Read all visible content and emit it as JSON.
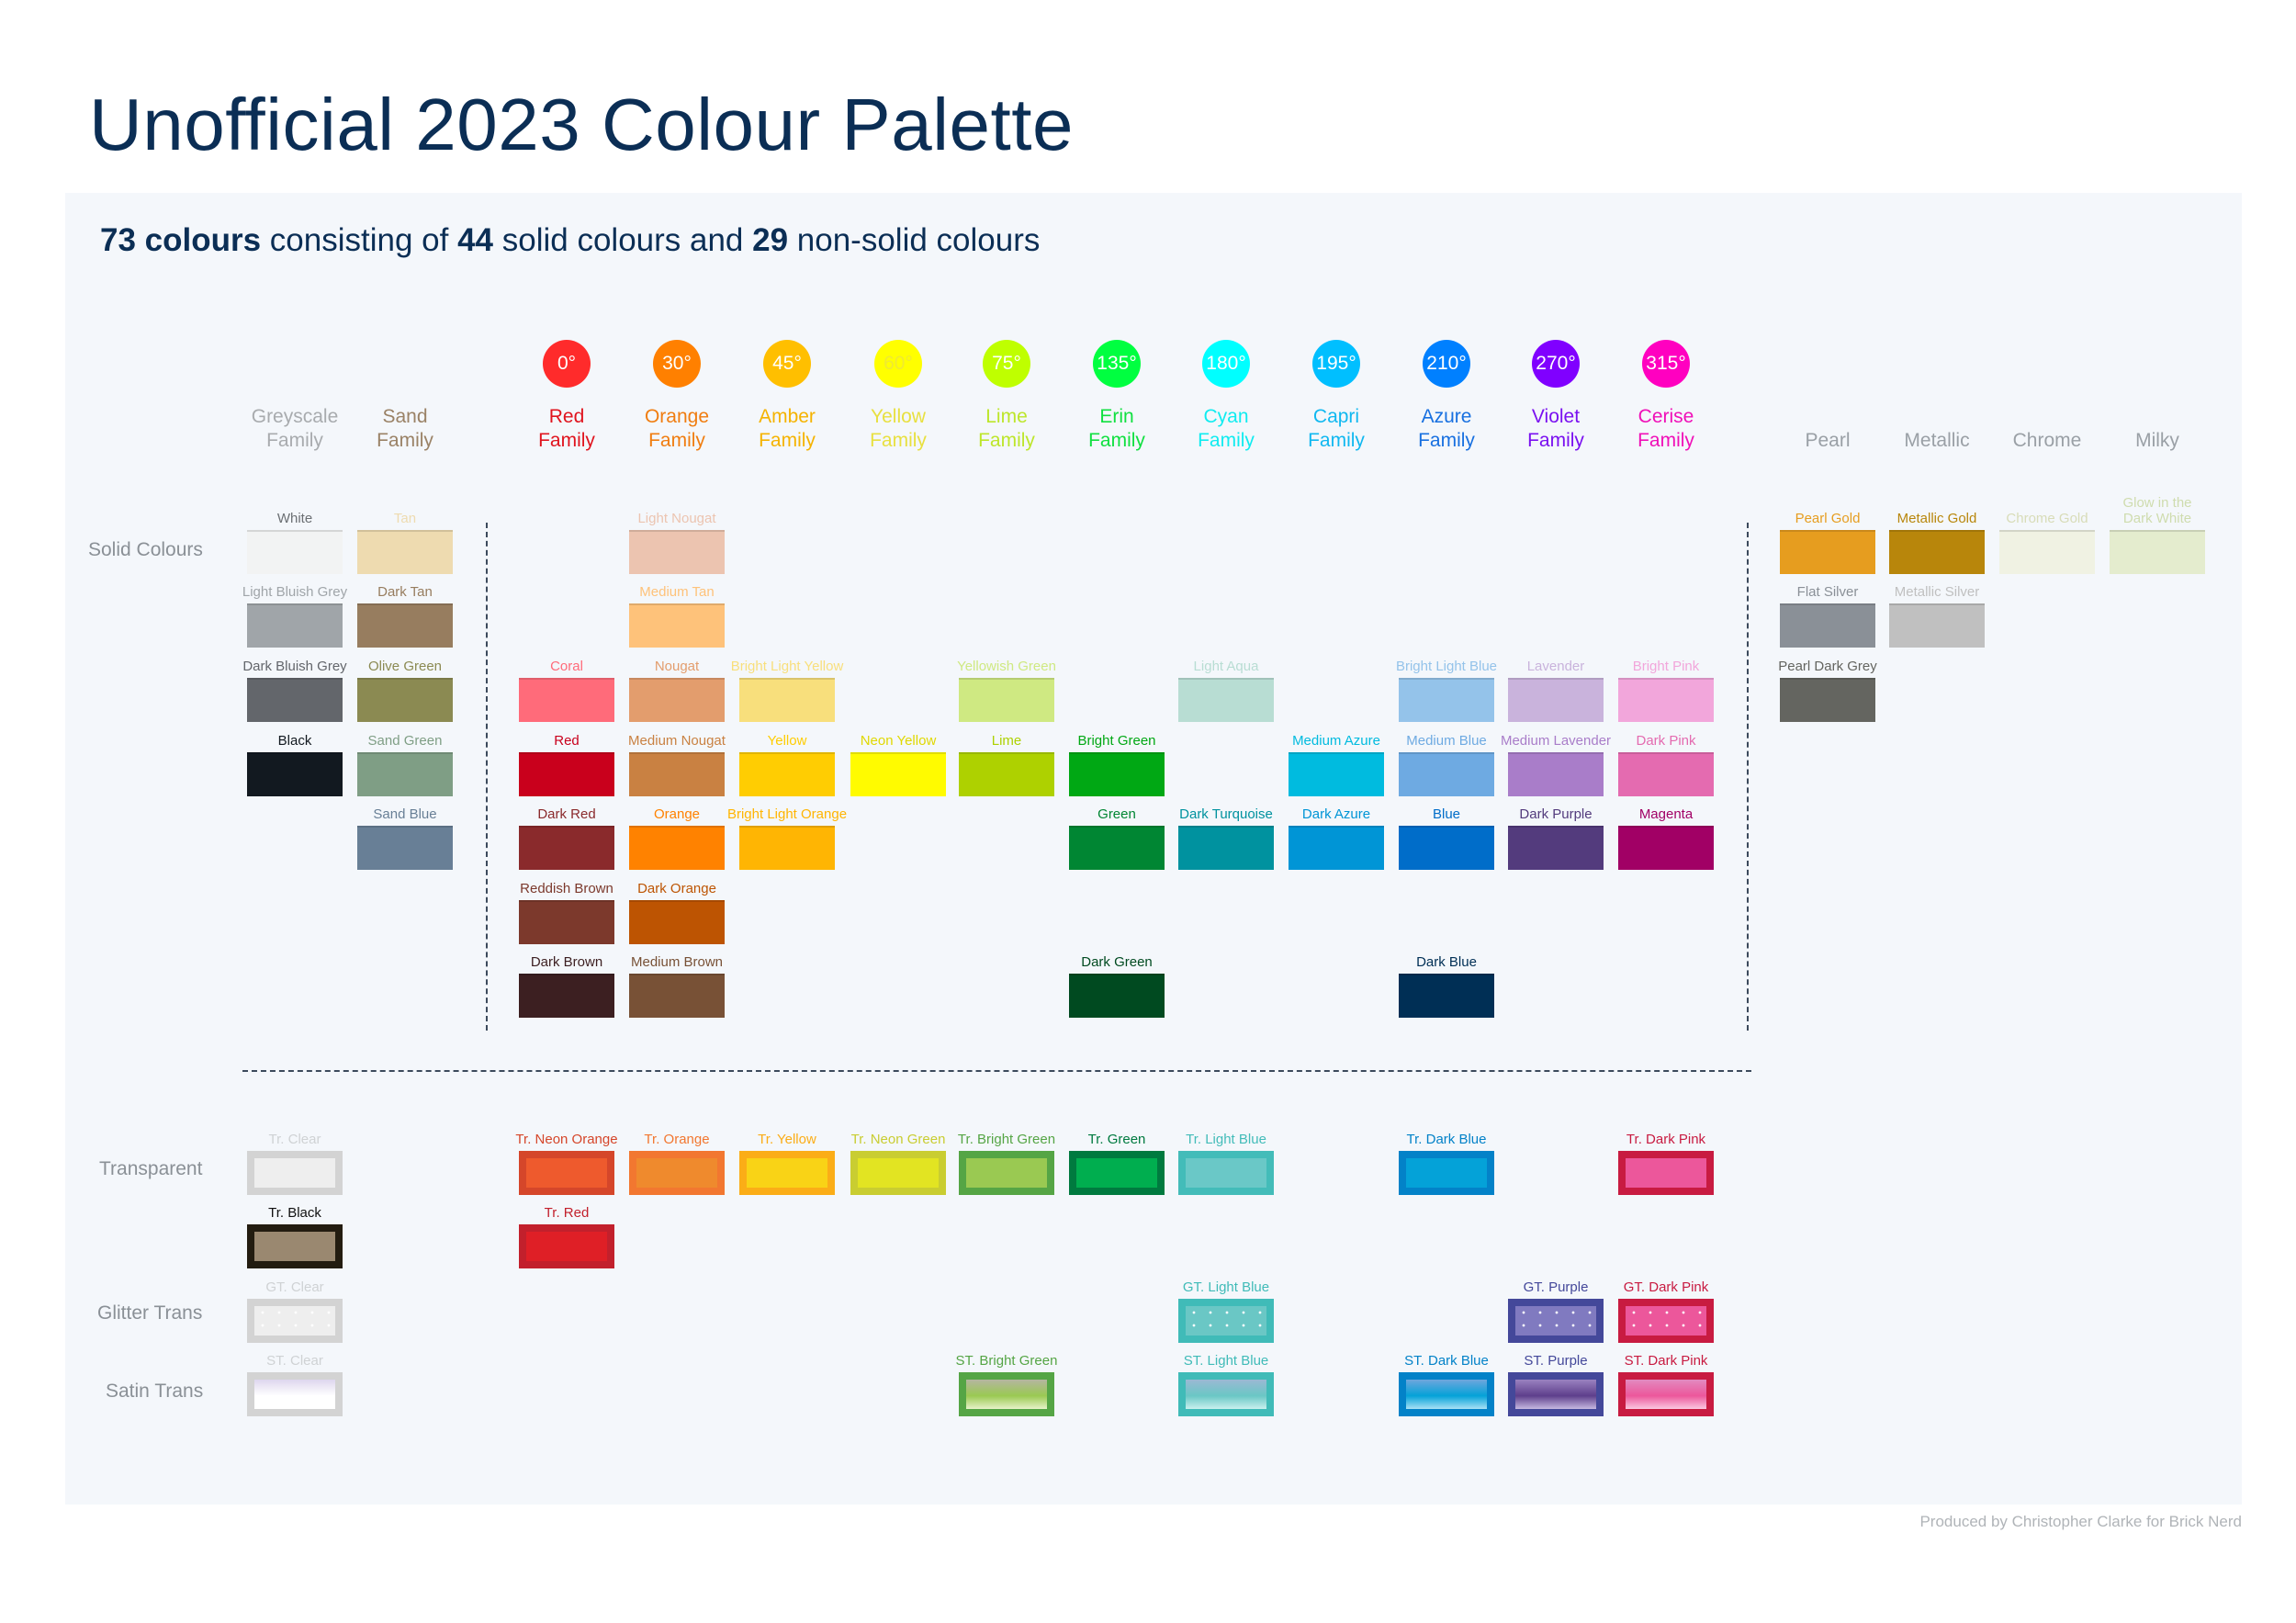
{
  "title": "Unofficial 2023 Colour Palette",
  "subtitle": {
    "total": "73 colours",
    "mid1": " consisting of ",
    "solid": "44",
    "mid2": " solid colours and ",
    "nonsolid": "29",
    "end": " non-solid colours"
  },
  "families": [
    {
      "name": [
        "Greyscale",
        "Family"
      ],
      "text_color": "#a8abae"
    },
    {
      "name": [
        "Sand",
        "Family"
      ],
      "text_color": "#9a8266"
    },
    {
      "degree": "0°",
      "name": [
        "Red",
        "Family"
      ],
      "color": "#ff2b2b",
      "text_color": "#e0141e"
    },
    {
      "degree": "30°",
      "name": [
        "Orange",
        "Family"
      ],
      "color": "#ff8000",
      "text_color": "#f07d10"
    },
    {
      "degree": "45°",
      "name": [
        "Amber",
        "Family"
      ],
      "color": "#ffbf00",
      "text_color": "#f5b300"
    },
    {
      "degree": "60°",
      "name": [
        "Yellow",
        "Family"
      ],
      "color": "#ffff00",
      "text_color": "#e8e040"
    },
    {
      "degree": "75°",
      "name": [
        "Lime",
        "Family"
      ],
      "color": "#bfff00",
      "text_color": "#bde62a"
    },
    {
      "degree": "135°",
      "name": [
        "Erin",
        "Family"
      ],
      "color": "#00ff40",
      "text_color": "#10e040"
    },
    {
      "degree": "180°",
      "name": [
        "Cyan",
        "Family"
      ],
      "color": "#00ffff",
      "text_color": "#10ecf0"
    },
    {
      "degree": "195°",
      "name": [
        "Capri",
        "Family"
      ],
      "color": "#00bfff",
      "text_color": "#10b8f0"
    },
    {
      "degree": "210°",
      "name": [
        "Azure",
        "Family"
      ],
      "color": "#0080ff",
      "text_color": "#1870e0"
    },
    {
      "degree": "270°",
      "name": [
        "Violet",
        "Family"
      ],
      "color": "#8000ff",
      "text_color": "#7a10f0"
    },
    {
      "degree": "315°",
      "name": [
        "Cerise",
        "Family"
      ],
      "color": "#ff00c0",
      "text_color": "#f010b8"
    },
    {
      "name": [
        "",
        "Pearl"
      ],
      "text_color": "#9aa0a6"
    },
    {
      "name": [
        "",
        "Metallic"
      ],
      "text_color": "#9aa0a6"
    },
    {
      "name": [
        "",
        "Chrome"
      ],
      "text_color": "#9aa0a6"
    },
    {
      "name": [
        "",
        "Milky"
      ],
      "text_color": "#9aa0a6"
    }
  ],
  "row_labels": {
    "solid": "Solid Colours",
    "transparent": "Transparent",
    "glitter": "Glitter Trans",
    "satin": "Satin Trans"
  },
  "solid_colours": [
    {
      "name": "White",
      "family": 0,
      "row": 0,
      "color": "#f2f3f3",
      "label_color": "#6b6f73"
    },
    {
      "name": "Light Bluish Grey",
      "family": 0,
      "row": 1,
      "color": "#a0a5a9"
    },
    {
      "name": "Dark Bluish Grey",
      "family": 0,
      "row": 2,
      "color": "#63666b"
    },
    {
      "name": "Black",
      "family": 0,
      "row": 3,
      "color": "#121920"
    },
    {
      "name": "Tan",
      "family": 1,
      "row": 0,
      "color": "#eedbb0"
    },
    {
      "name": "Dark Tan",
      "family": 1,
      "row": 1,
      "color": "#977d5f"
    },
    {
      "name": "Olive Green",
      "family": 1,
      "row": 2,
      "color": "#8b8a52"
    },
    {
      "name": "Sand Green",
      "family": 1,
      "row": 3,
      "color": "#7f9e85"
    },
    {
      "name": "Sand Blue",
      "family": 1,
      "row": 4,
      "color": "#687f96"
    },
    {
      "name": "Coral",
      "family": 2,
      "row": 2,
      "color": "#ff6b7a"
    },
    {
      "name": "Red",
      "family": 2,
      "row": 3,
      "color": "#c9001c"
    },
    {
      "name": "Dark Red",
      "family": 2,
      "row": 4,
      "color": "#8a2a2c"
    },
    {
      "name": "Reddish Brown",
      "family": 2,
      "row": 5,
      "color": "#7c392c"
    },
    {
      "name": "Dark Brown",
      "family": 2,
      "row": 6,
      "color": "#3c1f21"
    },
    {
      "name": "Light Nougat",
      "family": 3,
      "row": 0,
      "color": "#ecc4b0"
    },
    {
      "name": "Medium Tan",
      "family": 3,
      "row": 1,
      "color": "#fec27a"
    },
    {
      "name": "Nougat",
      "family": 3,
      "row": 2,
      "color": "#e39d6d"
    },
    {
      "name": "Medium Nougat",
      "family": 3,
      "row": 3,
      "color": "#c98142"
    },
    {
      "name": "Orange",
      "family": 3,
      "row": 4,
      "color": "#ff8200"
    },
    {
      "name": "Dark Orange",
      "family": 3,
      "row": 5,
      "color": "#bd5402"
    },
    {
      "name": "Medium Brown",
      "family": 3,
      "row": 6,
      "color": "#785136"
    },
    {
      "name": "Bright Light Yellow",
      "family": 4,
      "row": 2,
      "color": "#f8df7c"
    },
    {
      "name": "Yellow",
      "family": 4,
      "row": 3,
      "color": "#ffcd02"
    },
    {
      "name": "Bright Light Orange",
      "family": 4,
      "row": 4,
      "color": "#ffb503"
    },
    {
      "name": "Neon Yellow",
      "family": 5,
      "row": 3,
      "color": "#fffb00",
      "label_color": "#e0d800"
    },
    {
      "name": "Yellowish Green",
      "family": 6,
      "row": 2,
      "color": "#cfe982"
    },
    {
      "name": "Lime",
      "family": 6,
      "row": 3,
      "color": "#aed100"
    },
    {
      "name": "Bright Green",
      "family": 7,
      "row": 3,
      "color": "#00a814"
    },
    {
      "name": "Green",
      "family": 7,
      "row": 4,
      "color": "#008633"
    },
    {
      "name": "Dark Green",
      "family": 7,
      "row": 6,
      "color": "#004a20"
    },
    {
      "name": "Light Aqua",
      "family": 8,
      "row": 2,
      "color": "#b8ddd3"
    },
    {
      "name": "Dark Turquoise",
      "family": 8,
      "row": 4,
      "color": "#00929f"
    },
    {
      "name": "Medium Azure",
      "family": 9,
      "row": 3,
      "color": "#00bbdf"
    },
    {
      "name": "Dark Azure",
      "family": 9,
      "row": 4,
      "color": "#0095d6"
    },
    {
      "name": "Bright Light Blue",
      "family": 10,
      "row": 2,
      "color": "#94c3ea"
    },
    {
      "name": "Medium Blue",
      "family": 10,
      "row": 3,
      "color": "#6eaae2"
    },
    {
      "name": "Blue",
      "family": 10,
      "row": 4,
      "color": "#006dc9"
    },
    {
      "name": "Dark Blue",
      "family": 10,
      "row": 6,
      "color": "#002f55"
    },
    {
      "name": "Lavender",
      "family": 11,
      "row": 2,
      "color": "#c9b3dc"
    },
    {
      "name": "Medium Lavender",
      "family": 11,
      "row": 3,
      "color": "#a97dc9"
    },
    {
      "name": "Dark Purple",
      "family": 11,
      "row": 4,
      "color": "#533b7d"
    },
    {
      "name": "Bright Pink",
      "family": 12,
      "row": 2,
      "color": "#f2a6db"
    },
    {
      "name": "Dark Pink",
      "family": 12,
      "row": 3,
      "color": "#e46bb0"
    },
    {
      "name": "Magenta",
      "family": 12,
      "row": 4,
      "color": "#a10065"
    }
  ],
  "special_colours": [
    {
      "name": "Pearl Gold",
      "family": 13,
      "row": 0,
      "color": "#e69d1f"
    },
    {
      "name": "Flat Silver",
      "family": 13,
      "row": 1,
      "color": "#8a9097"
    },
    {
      "name": "Pearl Dark Grey",
      "family": 13,
      "row": 2,
      "color": "#646560"
    },
    {
      "name": "Metallic Gold",
      "family": 14,
      "row": 0,
      "color": "#b8860b"
    },
    {
      "name": "Metallic Silver",
      "family": 14,
      "row": 1,
      "color": "#c0c0c0"
    },
    {
      "name": "Chrome Gold",
      "family": 15,
      "row": 0,
      "color": "#f0f2e3",
      "label_color": "#d8dcb8"
    },
    {
      "name": "Glow in the Dark White",
      "family": 16,
      "row": 0,
      "color": "#e4ecce",
      "label_color": "#cfdcae"
    }
  ],
  "trans_colours": [
    {
      "name": "Tr. Clear",
      "family": 0,
      "row": 0,
      "type": "trans",
      "border": "#d3d3d3",
      "color": "#eeeeee",
      "label_color": "#cfd2d4"
    },
    {
      "name": "Tr. Black",
      "family": 0,
      "row": 1,
      "type": "trans",
      "border": "#231c10",
      "color": "#9a8870",
      "label_color": "#111111"
    },
    {
      "name": "Tr. Neon Orange",
      "family": 2,
      "row": 0,
      "type": "trans",
      "border": "#d5462a",
      "color": "#ee5a2d"
    },
    {
      "name": "Tr. Red",
      "family": 2,
      "row": 1,
      "type": "trans",
      "border": "#c2202c",
      "color": "#df1f26"
    },
    {
      "name": "Tr. Orange",
      "family": 3,
      "row": 0,
      "type": "trans",
      "border": "#f27730",
      "color": "#ef8a2d"
    },
    {
      "name": "Tr. Yellow",
      "family": 4,
      "row": 0,
      "type": "trans",
      "border": "#fbad17",
      "color": "#f9d316"
    },
    {
      "name": "Tr. Neon Green",
      "family": 5,
      "row": 0,
      "type": "trans",
      "border": "#c9cd31",
      "color": "#e2e422"
    },
    {
      "name": "Tr. Bright Green",
      "family": 6,
      "row": 0,
      "type": "trans",
      "border": "#55a545",
      "color": "#9ac952"
    },
    {
      "name": "Tr. Green",
      "family": 7,
      "row": 0,
      "type": "trans",
      "border": "#007a3f",
      "color": "#00ae4f"
    },
    {
      "name": "Tr. Light Blue",
      "family": 8,
      "row": 0,
      "type": "trans",
      "border": "#43bcb9",
      "color": "#6ac8c7"
    },
    {
      "name": "Tr. Dark Blue",
      "family": 10,
      "row": 0,
      "type": "trans",
      "border": "#0382c8",
      "color": "#04a2d8"
    },
    {
      "name": "Tr. Dark Pink",
      "family": 12,
      "row": 0,
      "type": "trans",
      "border": "#c81b41",
      "color": "#ec579b"
    },
    {
      "name": "GT. Clear",
      "family": 0,
      "row": 2,
      "type": "glitter",
      "border": "#d3d3d3",
      "color": "#eeeeee",
      "label_color": "#cfd2d4"
    },
    {
      "name": "GT. Light Blue",
      "family": 8,
      "row": 2,
      "type": "glitter",
      "border": "#40bbb8",
      "color": "#6ac7c5"
    },
    {
      "name": "GT. Purple",
      "family": 11,
      "row": 2,
      "type": "glitter",
      "border": "#44489a",
      "color": "#807ac0"
    },
    {
      "name": "GT. Dark Pink",
      "family": 12,
      "row": 2,
      "type": "glitter",
      "border": "#c81b41",
      "color": "#ec579b"
    },
    {
      "name": "ST. Clear",
      "family": 0,
      "row": 3,
      "type": "satin",
      "border": "#d3d3d3",
      "gradient": [
        "#ddd6ee",
        "#ffffff",
        "#ffffff"
      ],
      "label_color": "#cfd2d4"
    },
    {
      "name": "ST. Bright Green",
      "family": 6,
      "row": 3,
      "type": "satin",
      "border": "#55a545",
      "gradient": [
        "#b5b5a0",
        "#9ac952",
        "#e6f2c8"
      ]
    },
    {
      "name": "ST. Light Blue",
      "family": 8,
      "row": 3,
      "type": "satin",
      "border": "#40bbb8",
      "gradient": [
        "#9bb8d4",
        "#6ac7c5",
        "#c8f0ee"
      ]
    },
    {
      "name": "ST. Dark Blue",
      "family": 10,
      "row": 3,
      "type": "satin",
      "border": "#0382c8",
      "gradient": [
        "#6ea6dd",
        "#04a2d8",
        "#a8e0f5"
      ]
    },
    {
      "name": "ST. Purple",
      "family": 11,
      "row": 3,
      "type": "satin",
      "border": "#44489a",
      "gradient": [
        "#9a82c0",
        "#5e3f8c",
        "#c6b8e0"
      ]
    },
    {
      "name": "ST. Dark Pink",
      "family": 12,
      "row": 3,
      "type": "satin",
      "border": "#c81b41",
      "gradient": [
        "#e28ac0",
        "#ec579b",
        "#fac8e0"
      ]
    }
  ],
  "footer": "Produced by Christopher Clarke for Brick Nerd"
}
